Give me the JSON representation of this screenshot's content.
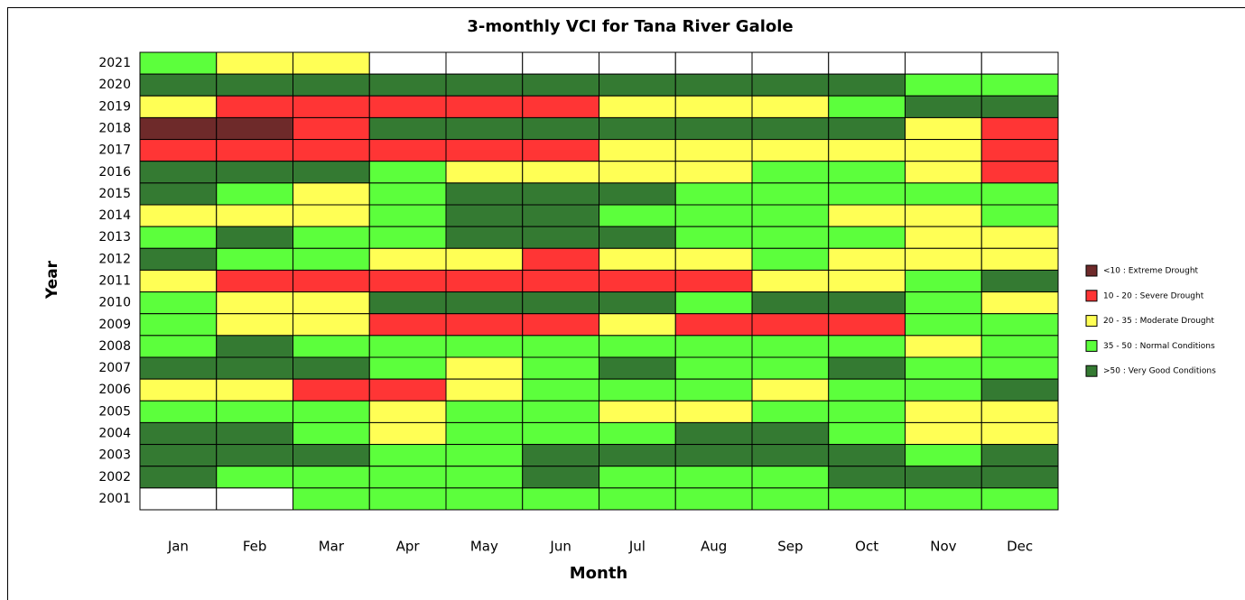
{
  "chart_data": {
    "type": "heatmap",
    "title": "3-monthly VCI for Tana River Galole",
    "x_label": "Month",
    "y_label": "Year",
    "x_categories": [
      "Jan",
      "Feb",
      "Mar",
      "Apr",
      "May",
      "Jun",
      "Jul",
      "Aug",
      "Sep",
      "Oct",
      "Nov",
      "Dec"
    ],
    "y_categories": [
      "2021",
      "2020",
      "2019",
      "2018",
      "2017",
      "2016",
      "2015",
      "2014",
      "2013",
      "2012",
      "2011",
      "2010",
      "2009",
      "2008",
      "2007",
      "2006",
      "2005",
      "2004",
      "2003",
      "2002",
      "2001"
    ],
    "legend": [
      {
        "name": "<10 : Extreme Drought",
        "color": "#6e2a2a"
      },
      {
        "name": "10 - 20 : Severe Drought",
        "color": "#ff3535"
      },
      {
        "name": "20 - 35 : Moderate Drought",
        "color": "#ffff55"
      },
      {
        "name": "35 - 50 : Normal Conditions",
        "color": "#5cff3c"
      },
      {
        "name": ">50 : Very Good Conditions",
        "color": "#347a32"
      }
    ],
    "legend_position": "right",
    "values": [
      [
        3,
        2,
        2,
        null,
        null,
        null,
        null,
        null,
        null,
        null,
        null,
        null
      ],
      [
        4,
        4,
        4,
        4,
        4,
        4,
        4,
        4,
        4,
        4,
        3,
        3
      ],
      [
        2,
        1,
        1,
        1,
        1,
        1,
        2,
        2,
        2,
        3,
        4,
        4
      ],
      [
        0,
        0,
        1,
        4,
        4,
        4,
        4,
        4,
        4,
        4,
        2,
        1
      ],
      [
        1,
        1,
        1,
        1,
        1,
        1,
        2,
        2,
        2,
        2,
        2,
        1
      ],
      [
        4,
        4,
        4,
        3,
        2,
        2,
        2,
        2,
        3,
        3,
        2,
        1
      ],
      [
        4,
        3,
        2,
        3,
        4,
        4,
        4,
        3,
        3,
        3,
        3,
        3
      ],
      [
        2,
        2,
        2,
        3,
        4,
        4,
        3,
        3,
        3,
        2,
        2,
        3
      ],
      [
        3,
        4,
        3,
        3,
        4,
        4,
        4,
        3,
        3,
        3,
        2,
        2
      ],
      [
        4,
        3,
        3,
        2,
        2,
        1,
        2,
        2,
        3,
        2,
        2,
        2
      ],
      [
        2,
        1,
        1,
        1,
        1,
        1,
        1,
        1,
        2,
        2,
        3,
        4
      ],
      [
        3,
        2,
        2,
        4,
        4,
        4,
        4,
        3,
        4,
        4,
        3,
        2
      ],
      [
        3,
        2,
        2,
        1,
        1,
        1,
        2,
        1,
        1,
        1,
        3,
        3
      ],
      [
        3,
        4,
        3,
        3,
        3,
        3,
        3,
        3,
        3,
        3,
        2,
        3
      ],
      [
        4,
        4,
        4,
        3,
        2,
        3,
        4,
        3,
        3,
        4,
        3,
        3
      ],
      [
        2,
        2,
        1,
        1,
        2,
        3,
        3,
        3,
        2,
        3,
        3,
        4
      ],
      [
        3,
        3,
        3,
        2,
        3,
        3,
        2,
        2,
        3,
        3,
        2,
        2
      ],
      [
        4,
        4,
        3,
        2,
        3,
        3,
        3,
        4,
        4,
        3,
        2,
        2
      ],
      [
        4,
        4,
        4,
        3,
        3,
        4,
        4,
        4,
        4,
        4,
        3,
        4
      ],
      [
        4,
        3,
        3,
        3,
        3,
        4,
        3,
        3,
        3,
        4,
        4,
        4
      ],
      [
        null,
        null,
        3,
        3,
        3,
        3,
        3,
        3,
        3,
        3,
        3,
        3
      ]
    ]
  }
}
